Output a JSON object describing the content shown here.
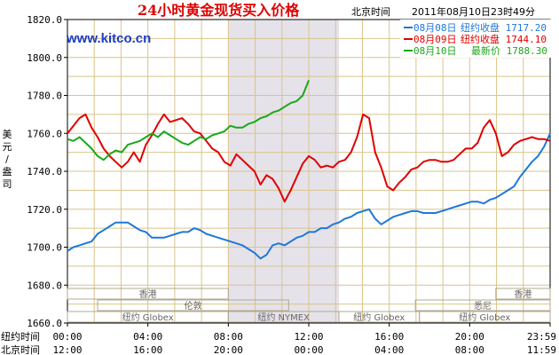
{
  "chart_data": {
    "type": "line",
    "title": "24小时黄金现货买入价格",
    "timezone_label": "北京时间",
    "timestamp": "2011年08月10日23时49分",
    "watermark": "www.kitco.cn",
    "ylabel": "美元/盎司",
    "ylim": [
      1660,
      1820
    ],
    "yticks": [
      1660,
      1680,
      1700,
      1720,
      1740,
      1760,
      1780,
      1800,
      1820
    ],
    "ytick_labels": [
      "1660.0",
      "1680.0",
      "1700.0",
      "1720.0",
      "1740.0",
      "1760.0",
      "1780.0",
      "1800.0",
      "1820.0"
    ],
    "xlim": [
      0,
      24
    ],
    "x_ticks": [
      0,
      4,
      8,
      12,
      16,
      20,
      24
    ],
    "x_tick_labels_ny": [
      "00:00",
      "04:00",
      "08:00",
      "12:00",
      "16:00",
      "20:00",
      "23:59"
    ],
    "x_tick_labels_bj": [
      "12:00",
      "16:00",
      "20:00",
      "00:00",
      "04:00",
      "08:00",
      "11:59"
    ],
    "x_row_label_ny": "纽约时间",
    "x_row_label_bj": "北京时间",
    "shaded_region": [
      8,
      13.5
    ],
    "grid": true,
    "legend_position": "top-right",
    "series": [
      {
        "name": "08月08日",
        "legend_text": "纽约收盘 1717.20",
        "color": "#1e78d8",
        "x": [
          0,
          0.3,
          0.6,
          0.9,
          1.2,
          1.5,
          1.8,
          2.1,
          2.4,
          2.7,
          3.0,
          3.3,
          3.6,
          3.9,
          4.2,
          4.5,
          4.8,
          5.1,
          5.4,
          5.7,
          6.0,
          6.3,
          6.6,
          6.9,
          7.2,
          7.5,
          7.8,
          8.1,
          8.4,
          8.7,
          9.0,
          9.3,
          9.6,
          9.9,
          10.2,
          10.5,
          10.8,
          11.1,
          11.4,
          11.7,
          12.0,
          12.3,
          12.6,
          12.9,
          13.2,
          13.5,
          13.8,
          14.1,
          14.4,
          14.7,
          15.0,
          15.3,
          15.6,
          15.9,
          16.2,
          16.5,
          16.8,
          17.1,
          17.4,
          17.7,
          18.0,
          18.3,
          18.6,
          18.9,
          19.2,
          19.5,
          19.8,
          20.1,
          20.4,
          20.7,
          21.0,
          21.3,
          21.6,
          21.9,
          22.2,
          22.5,
          22.8,
          23.1,
          23.4,
          23.7,
          24.0
        ],
        "y": [
          1698,
          1700,
          1701,
          1702,
          1703,
          1707,
          1709,
          1711,
          1713,
          1713,
          1713,
          1711,
          1709,
          1708,
          1705,
          1705,
          1705,
          1706,
          1707,
          1708,
          1708,
          1710,
          1709,
          1707,
          1706,
          1705,
          1704,
          1703,
          1702,
          1701,
          1699,
          1697,
          1694,
          1696,
          1701,
          1702,
          1701,
          1703,
          1705,
          1706,
          1708,
          1708,
          1710,
          1710,
          1712,
          1713,
          1715,
          1716,
          1718,
          1719,
          1720,
          1715,
          1712,
          1714,
          1716,
          1717,
          1718,
          1719,
          1719,
          1718,
          1718,
          1718,
          1719,
          1720,
          1721,
          1722,
          1723,
          1724,
          1724,
          1723,
          1725,
          1726,
          1728,
          1730,
          1732,
          1737,
          1741,
          1745,
          1748,
          1753,
          1760
        ]
      },
      {
        "name": "08月09日",
        "legend_text": "纽约收盘 1744.10",
        "color": "#e00000",
        "x": [
          0,
          0.3,
          0.6,
          0.9,
          1.2,
          1.5,
          1.8,
          2.1,
          2.4,
          2.7,
          3.0,
          3.3,
          3.6,
          3.9,
          4.2,
          4.5,
          4.8,
          5.1,
          5.4,
          5.7,
          6.0,
          6.3,
          6.6,
          6.9,
          7.2,
          7.5,
          7.8,
          8.1,
          8.4,
          8.7,
          9.0,
          9.3,
          9.6,
          9.9,
          10.2,
          10.5,
          10.8,
          11.1,
          11.4,
          11.7,
          12.0,
          12.3,
          12.6,
          12.9,
          13.2,
          13.5,
          13.8,
          14.1,
          14.4,
          14.7,
          15.0,
          15.3,
          15.6,
          15.9,
          16.2,
          16.5,
          16.8,
          17.1,
          17.4,
          17.7,
          18.0,
          18.3,
          18.6,
          18.9,
          19.2,
          19.5,
          19.8,
          20.1,
          20.4,
          20.7,
          21.0,
          21.3,
          21.6,
          21.9,
          22.2,
          22.5,
          22.8,
          23.1,
          23.4,
          23.7,
          24.0
        ],
        "y": [
          1760,
          1764,
          1768,
          1770,
          1763,
          1758,
          1752,
          1748,
          1745,
          1742,
          1745,
          1750,
          1745,
          1754,
          1759,
          1765,
          1770,
          1766,
          1767,
          1768,
          1765,
          1761,
          1760,
          1756,
          1752,
          1750,
          1745,
          1743,
          1749,
          1746,
          1743,
          1740,
          1733,
          1738,
          1736,
          1731,
          1724,
          1730,
          1737,
          1744,
          1748,
          1746,
          1742,
          1743,
          1742,
          1745,
          1746,
          1750,
          1758,
          1770,
          1768,
          1750,
          1742,
          1732,
          1730,
          1734,
          1737,
          1741,
          1742,
          1745,
          1746,
          1746,
          1745,
          1745,
          1746,
          1749,
          1752,
          1752,
          1755,
          1763,
          1767,
          1760,
          1748,
          1750,
          1754,
          1756,
          1757,
          1758,
          1757,
          1757,
          1756
        ]
      },
      {
        "name": "08月10日",
        "legend_text": "最新价 1788.30",
        "color": "#1aa81a",
        "x": [
          0,
          0.3,
          0.6,
          0.9,
          1.2,
          1.5,
          1.8,
          2.1,
          2.4,
          2.7,
          3.0,
          3.3,
          3.6,
          3.9,
          4.2,
          4.5,
          4.8,
          5.1,
          5.4,
          5.7,
          6.0,
          6.3,
          6.6,
          6.9,
          7.2,
          7.5,
          7.8,
          8.1,
          8.4,
          8.7,
          9.0,
          9.3,
          9.6,
          9.9,
          10.2,
          10.5,
          10.8,
          11.1,
          11.4,
          11.7,
          12.0
        ],
        "y": [
          1757,
          1756,
          1758,
          1755,
          1752,
          1748,
          1746,
          1749,
          1751,
          1750,
          1754,
          1755,
          1756,
          1758,
          1760,
          1758,
          1761,
          1759,
          1757,
          1755,
          1754,
          1756,
          1758,
          1757,
          1759,
          1760,
          1761,
          1764,
          1763,
          1763,
          1765,
          1766,
          1768,
          1769,
          1771,
          1772,
          1774,
          1776,
          1777,
          1780,
          1788
        ]
      }
    ],
    "markets": [
      {
        "label": "香港",
        "row": 1,
        "start": 0,
        "end": 8
      },
      {
        "label": "香港",
        "row": 1,
        "start": 21.3,
        "end": 24
      },
      {
        "label": "伦敦",
        "row": 2,
        "start": 1.5,
        "end": 11
      },
      {
        "label": "悉尼",
        "row": 2,
        "start": 17.3,
        "end": 24
      },
      {
        "label": "纽约 Globex",
        "row": 3,
        "start": 0,
        "end": 8
      },
      {
        "label": "纽约 NYMEX",
        "row": 3,
        "start": 8,
        "end": 13.5
      },
      {
        "label": "纽约 Globex",
        "row": 3,
        "start": 13.5,
        "end": 17.5
      },
      {
        "label": "纽约 Globex",
        "row": 3,
        "start": 17.5,
        "end": 24
      }
    ]
  }
}
